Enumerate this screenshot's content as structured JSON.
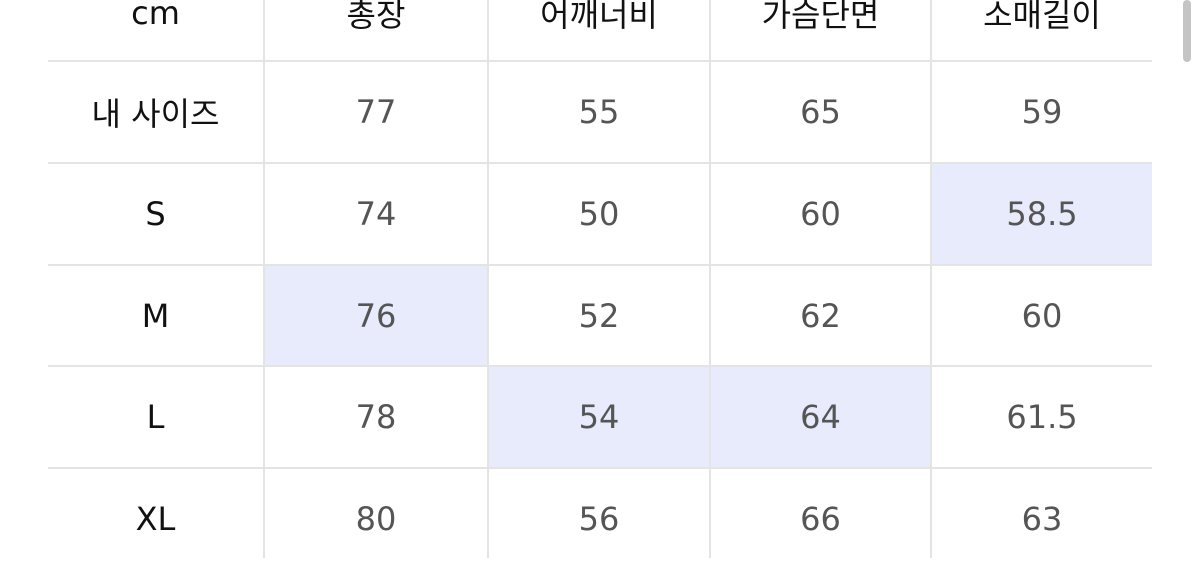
{
  "table": {
    "header": [
      "cm",
      "총장",
      "어깨너비",
      "가슴단면",
      "소매길이"
    ],
    "rows": [
      [
        "내 사이즈",
        "77",
        "55",
        "65",
        "59"
      ],
      [
        "S",
        "74",
        "50",
        "60",
        "58.5"
      ],
      [
        "M",
        "76",
        "52",
        "62",
        "60"
      ],
      [
        "L",
        "78",
        "54",
        "64",
        "61.5"
      ],
      [
        "XL",
        "80",
        "56",
        "66",
        "63"
      ]
    ]
  }
}
